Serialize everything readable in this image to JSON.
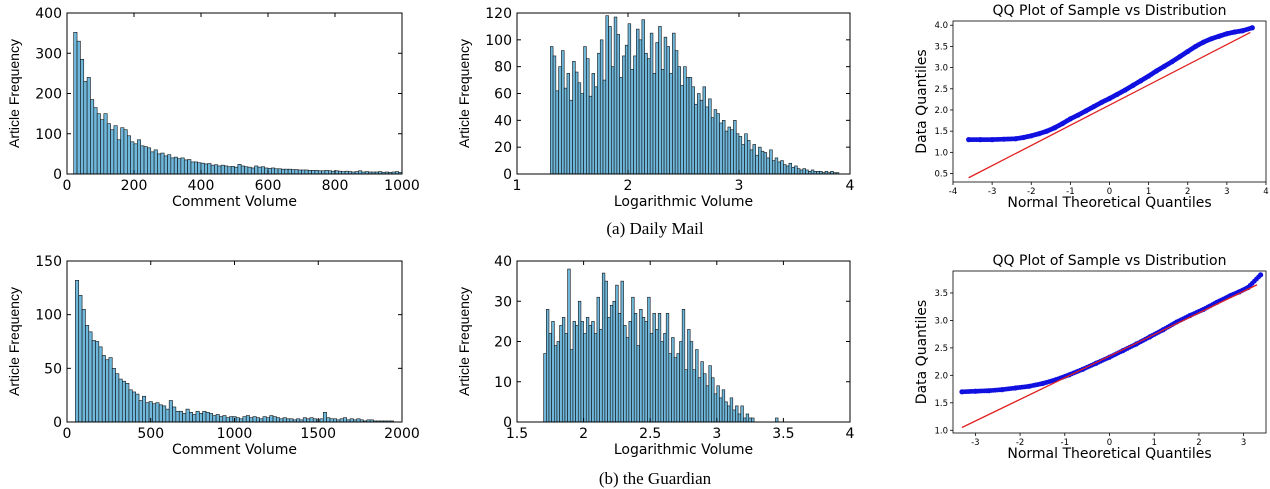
{
  "captions": {
    "top": "(a) Daily Mail",
    "bottom": "(b) the Guardian"
  },
  "chart_data": [
    {
      "id": "dm-comment",
      "type": "bar",
      "xlabel": "Comment Volume",
      "ylabel": "Article Frequency",
      "xlim": [
        0,
        1000
      ],
      "ylim": [
        0,
        400
      ],
      "xticks": [
        "0",
        "200",
        "400",
        "600",
        "800",
        "1000"
      ],
      "yticks": [
        "0",
        "100",
        "200",
        "300",
        "400"
      ],
      "bin_start": 20,
      "bin_width": 10,
      "values": [
        352,
        330,
        285,
        230,
        240,
        185,
        165,
        150,
        135,
        150,
        125,
        110,
        120,
        85,
        115,
        110,
        95,
        80,
        75,
        85,
        70,
        68,
        65,
        55,
        60,
        50,
        52,
        45,
        48,
        40,
        42,
        38,
        40,
        35,
        36,
        30,
        30,
        28,
        27,
        25,
        26,
        22,
        23,
        20,
        22,
        20,
        18,
        19,
        17,
        24,
        20,
        18,
        17,
        15,
        20,
        17,
        18,
        15,
        14,
        15,
        13,
        13,
        12,
        12,
        12,
        11,
        11,
        10,
        10,
        10,
        9,
        9,
        9,
        8,
        8,
        9,
        8,
        7,
        8,
        7,
        6,
        7,
        6,
        5,
        6,
        8,
        5,
        6,
        5,
        5,
        5,
        6,
        4,
        5,
        4,
        5,
        6,
        4
      ]
    },
    {
      "id": "dm-log",
      "type": "bar",
      "xlabel": "Logarithmic Volume",
      "ylabel": "Article Frequency",
      "xlim": [
        1,
        4
      ],
      "ylim": [
        0,
        120
      ],
      "xticks": [
        "1",
        "2",
        "3",
        "4"
      ],
      "yticks": [
        "0",
        "20",
        "40",
        "60",
        "80",
        "100",
        "120"
      ],
      "bin_start": 1.3,
      "bin_width": 0.025,
      "values": [
        95,
        88,
        62,
        80,
        92,
        64,
        75,
        55,
        84,
        76,
        68,
        60,
        95,
        86,
        58,
        75,
        65,
        90,
        100,
        70,
        118,
        110,
        80,
        117,
        104,
        72,
        88,
        96,
        112,
        78,
        88,
        108,
        100,
        115,
        90,
        86,
        105,
        75,
        98,
        110,
        78,
        102,
        95,
        75,
        105,
        92,
        80,
        66,
        80,
        72,
        72,
        65,
        52,
        60,
        55,
        65,
        50,
        56,
        42,
        48,
        45,
        38,
        40,
        32,
        35,
        33,
        40,
        30,
        28,
        22,
        30,
        25,
        18,
        22,
        14,
        20,
        17,
        16,
        12,
        18,
        10,
        12,
        9,
        10,
        7,
        6,
        8,
        5,
        6,
        4,
        3,
        4,
        3,
        2,
        3,
        2,
        2,
        2,
        1,
        2,
        1,
        2,
        1,
        1
      ]
    },
    {
      "id": "dm-qq",
      "type": "scatter",
      "title": "QQ Plot of Sample vs Distribution",
      "xlabel": "Normal Theoretical Quantiles",
      "ylabel": "Data Quantiles",
      "xlim": [
        -4,
        4
      ],
      "ylim": [
        0.3,
        4.1
      ],
      "xticks": [
        "-4",
        "-3",
        "-2",
        "-1",
        "0",
        "1",
        "2",
        "3",
        "4"
      ],
      "yticks": [
        "0.5",
        "1.0",
        "1.5",
        "2.0",
        "2.5",
        "3.0",
        "3.5",
        "4.0"
      ],
      "points": [
        [
          -3.6,
          1.3
        ],
        [
          -3.3,
          1.3
        ],
        [
          -3.0,
          1.3
        ],
        [
          -2.7,
          1.31
        ],
        [
          -2.4,
          1.32
        ],
        [
          -2.2,
          1.35
        ],
        [
          -2.0,
          1.39
        ],
        [
          -1.8,
          1.44
        ],
        [
          -1.6,
          1.5
        ],
        [
          -1.4,
          1.58
        ],
        [
          -1.2,
          1.68
        ],
        [
          -1.0,
          1.79
        ],
        [
          -0.8,
          1.88
        ],
        [
          -0.6,
          1.98
        ],
        [
          -0.4,
          2.08
        ],
        [
          -0.2,
          2.18
        ],
        [
          0.0,
          2.27
        ],
        [
          0.2,
          2.37
        ],
        [
          0.4,
          2.47
        ],
        [
          0.6,
          2.58
        ],
        [
          0.8,
          2.69
        ],
        [
          1.0,
          2.8
        ],
        [
          1.2,
          2.92
        ],
        [
          1.4,
          3.03
        ],
        [
          1.6,
          3.14
        ],
        [
          1.8,
          3.26
        ],
        [
          2.0,
          3.38
        ],
        [
          2.2,
          3.5
        ],
        [
          2.4,
          3.6
        ],
        [
          2.6,
          3.68
        ],
        [
          2.8,
          3.74
        ],
        [
          3.0,
          3.8
        ],
        [
          3.2,
          3.84
        ],
        [
          3.4,
          3.87
        ],
        [
          3.65,
          3.94
        ]
      ],
      "fit_line": [
        [
          -3.6,
          0.4
        ],
        [
          3.6,
          3.83
        ]
      ]
    },
    {
      "id": "gu-comment",
      "type": "bar",
      "xlabel": "Comment Volume",
      "ylabel": "Article Frequency",
      "xlim": [
        0,
        2000
      ],
      "ylim": [
        0,
        150
      ],
      "xticks": [
        "0",
        "500",
        "1000",
        "1500",
        "2000"
      ],
      "yticks": [
        "0",
        "50",
        "100",
        "150"
      ],
      "bin_start": 50,
      "bin_width": 20,
      "values": [
        132,
        118,
        105,
        90,
        84,
        76,
        75,
        70,
        62,
        58,
        60,
        50,
        45,
        40,
        38,
        36,
        30,
        28,
        26,
        20,
        24,
        18,
        19,
        17,
        18,
        16,
        15,
        12,
        20,
        14,
        10,
        10,
        8,
        12,
        9,
        7,
        10,
        8,
        10,
        9,
        8,
        6,
        7,
        5,
        6,
        4,
        5,
        5,
        4,
        3,
        5,
        6,
        4,
        5,
        4,
        3,
        5,
        4,
        6,
        5,
        4,
        3,
        4,
        3,
        3,
        2,
        3,
        2,
        4,
        3,
        4,
        3,
        2,
        3,
        9,
        4,
        3,
        3,
        2,
        3,
        4,
        2,
        3,
        2,
        3,
        2,
        1,
        2,
        2,
        1,
        1,
        1,
        1,
        1,
        1
      ]
    },
    {
      "id": "gu-log",
      "type": "bar",
      "xlabel": "Logarithmic Volume",
      "ylabel": "Article Frequency",
      "xlim": [
        1.5,
        4
      ],
      "ylim": [
        0,
        40
      ],
      "xticks": [
        "1.5",
        "2",
        "2.5",
        "3",
        "3.5",
        "4"
      ],
      "yticks": [
        "0",
        "10",
        "20",
        "30",
        "40"
      ],
      "bin_start": 1.7,
      "bin_width": 0.02,
      "values": [
        17,
        28,
        22,
        25,
        19,
        20,
        24,
        26,
        22,
        38,
        18,
        25,
        24,
        30,
        25,
        22,
        26,
        24,
        25,
        22,
        31,
        23,
        37,
        35,
        26,
        29,
        30,
        34,
        27,
        35,
        24,
        21,
        25,
        31,
        27,
        19,
        28,
        26,
        25,
        31,
        22,
        27,
        23,
        27,
        20,
        22,
        27,
        17,
        21,
        16,
        17,
        20,
        28,
        13,
        23,
        20,
        13,
        18,
        11,
        15,
        12,
        9,
        14,
        11,
        7,
        9,
        6,
        8,
        5,
        4,
        6,
        3,
        4,
        2,
        4,
        1,
        2,
        1,
        1,
        0,
        0,
        0,
        0,
        0,
        0,
        0,
        0,
        1
      ]
    },
    {
      "id": "gu-qq",
      "type": "scatter",
      "title": "QQ Plot of Sample vs Distribution",
      "xlabel": "Normal Theoretical Quantiles",
      "ylabel": "Data Quantiles",
      "xlim": [
        -3.5,
        3.5
      ],
      "ylim": [
        0.95,
        3.9
      ],
      "xticks": [
        "-3",
        "-2",
        "-1",
        "0",
        "1",
        "2",
        "3"
      ],
      "yticks": [
        "1.0",
        "1.5",
        "2.0",
        "2.5",
        "3.0",
        "3.5"
      ],
      "points": [
        [
          -3.3,
          1.7
        ],
        [
          -3.0,
          1.71
        ],
        [
          -2.7,
          1.72
        ],
        [
          -2.4,
          1.74
        ],
        [
          -2.1,
          1.77
        ],
        [
          -1.8,
          1.8
        ],
        [
          -1.5,
          1.85
        ],
        [
          -1.2,
          1.92
        ],
        [
          -0.9,
          2.01
        ],
        [
          -0.6,
          2.11
        ],
        [
          -0.3,
          2.22
        ],
        [
          0.0,
          2.33
        ],
        [
          0.3,
          2.45
        ],
        [
          0.6,
          2.57
        ],
        [
          0.9,
          2.7
        ],
        [
          1.2,
          2.83
        ],
        [
          1.5,
          2.97
        ],
        [
          1.8,
          3.09
        ],
        [
          2.1,
          3.2
        ],
        [
          2.4,
          3.33
        ],
        [
          2.7,
          3.45
        ],
        [
          2.9,
          3.52
        ],
        [
          3.1,
          3.6
        ],
        [
          3.38,
          3.83
        ]
      ],
      "fit_line": [
        [
          -3.3,
          1.05
        ],
        [
          3.3,
          3.65
        ]
      ]
    }
  ]
}
